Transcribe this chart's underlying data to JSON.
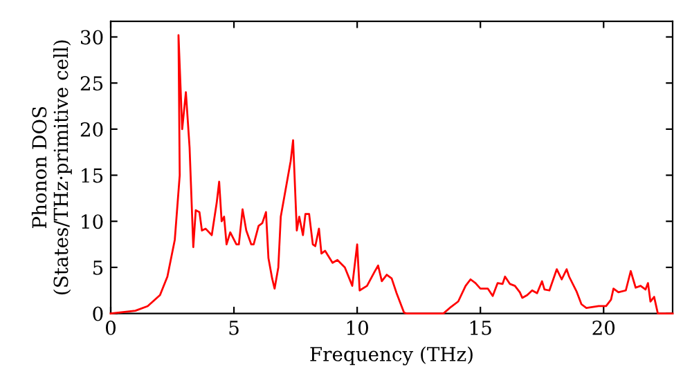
{
  "chart_data": {
    "type": "line",
    "xlabel": "Frequency (THz)",
    "ylabel": "Phonon DOS\n(States/THz·primitive cell)",
    "xlim": [
      0,
      22.8
    ],
    "ylim": [
      0,
      31.7
    ],
    "xticks": [
      0,
      5,
      10,
      15,
      20
    ],
    "yticks": [
      0,
      5,
      10,
      15,
      20,
      25,
      30
    ],
    "grid": false,
    "legend": false,
    "series": [
      {
        "color": "#ff0000",
        "x": [
          0,
          1,
          1.5,
          2,
          2.3,
          2.6,
          2.8,
          2.75,
          2.9,
          3.05,
          3.2,
          3.35,
          3.45,
          3.6,
          3.7,
          3.85,
          4.1,
          4.3,
          4.4,
          4.5,
          4.6,
          4.7,
          4.85,
          5.1,
          5.2,
          5.35,
          5.5,
          5.7,
          5.8,
          6,
          6.15,
          6.3,
          6.4,
          6.55,
          6.65,
          6.8,
          6.9,
          7.3,
          7.4,
          7.55,
          7.65,
          7.8,
          7.9,
          8.05,
          8.2,
          8.3,
          8.45,
          8.55,
          8.7,
          9,
          9.2,
          9.5,
          9.8,
          10,
          10.1,
          10.4,
          10.7,
          10.85,
          11,
          11.2,
          11.4,
          11.6,
          11.9,
          12,
          13.5,
          13.8,
          14.1,
          14.4,
          14.6,
          14.8,
          15,
          15.3,
          15.5,
          15.7,
          15.9,
          16,
          16.2,
          16.4,
          16.6,
          16.7,
          16.9,
          17.1,
          17.3,
          17.5,
          17.6,
          17.8,
          18.1,
          18.3,
          18.5,
          18.6,
          18.9,
          19.1,
          19.3,
          19.8,
          20.1,
          20.3,
          20.4,
          20.6,
          20.9,
          21.1,
          21.3,
          21.5,
          21.7,
          21.8,
          21.9,
          22.05,
          22.2,
          22.8
        ],
        "values": [
          0,
          0.3,
          0.8,
          2,
          4,
          8,
          15,
          30.2,
          20,
          24,
          18,
          7.2,
          11.2,
          11,
          9,
          9.2,
          8.5,
          12,
          14.3,
          10,
          10.5,
          7.5,
          8.8,
          7.5,
          7.5,
          11.3,
          9,
          7.5,
          7.5,
          9.5,
          9.8,
          11,
          6,
          3.8,
          2.7,
          5,
          10.5,
          16.5,
          18.8,
          9,
          10.5,
          8.5,
          10.8,
          10.8,
          7.5,
          7.3,
          9.2,
          6.5,
          6.8,
          5.5,
          5.8,
          5,
          3,
          7.5,
          2.5,
          3,
          4.5,
          5.2,
          3.5,
          4.2,
          3.8,
          2.2,
          0.1,
          0,
          0,
          0.7,
          1.3,
          3,
          3.7,
          3.3,
          2.7,
          2.7,
          1.9,
          3.3,
          3.2,
          4,
          3.2,
          3,
          2.3,
          1.7,
          2,
          2.5,
          2.2,
          3.5,
          2.6,
          2.5,
          4.8,
          3.7,
          4.8,
          4,
          2.4,
          1,
          0.6,
          0.8,
          0.8,
          1.5,
          2.7,
          2.3,
          2.5,
          4.6,
          2.8,
          3,
          2.6,
          3.3,
          1.3,
          1.8,
          0,
          0
        ]
      }
    ]
  }
}
